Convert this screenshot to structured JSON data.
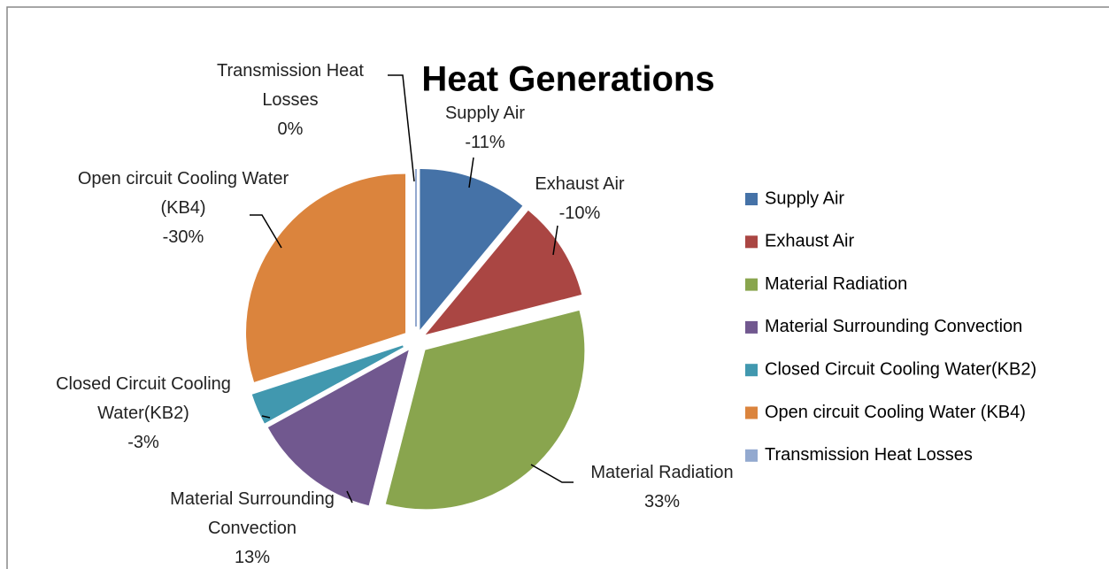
{
  "chart_data": {
    "type": "pie",
    "title": "Heat Generations",
    "categories": [
      "Supply Air",
      "Exhaust Air",
      "Material Radiation",
      "Material Surrounding Convection",
      "Closed Circuit Cooling Water(KB2)",
      "Open circuit Cooling Water (KB4)",
      "Transmission Heat Losses"
    ],
    "values": [
      -11,
      -10,
      33,
      13,
      -3,
      -30,
      0
    ],
    "value_labels": [
      "-11%",
      "-10%",
      "33%",
      "13%",
      "-3%",
      "-30%",
      "0%"
    ],
    "colors": [
      "#4572a7",
      "#aa4643",
      "#89a54e",
      "#71588f",
      "#4198af",
      "#db843d",
      "#93a9cf"
    ],
    "legend": "right"
  }
}
